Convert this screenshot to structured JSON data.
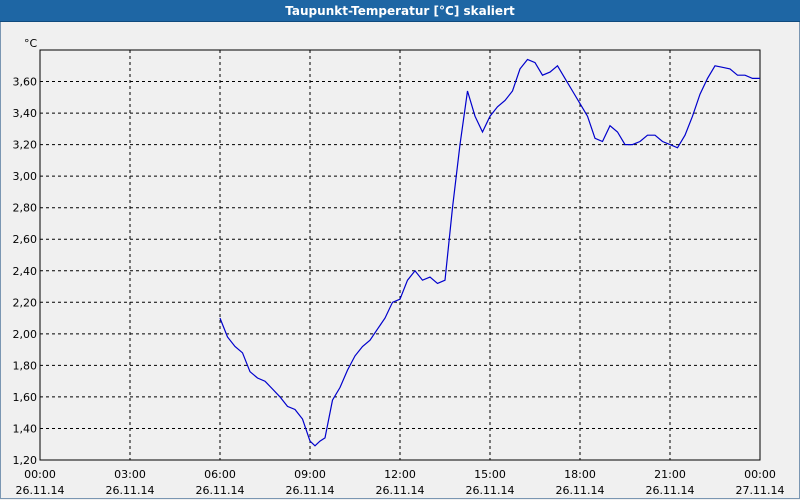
{
  "window": {
    "title": "Taupunkt-Temperatur [°C] skaliert"
  },
  "colors": {
    "series": "#0000cc",
    "grid": "#000000",
    "background": "#f0f0f0",
    "titlebar": "#1e66a4"
  },
  "chart_data": {
    "type": "line",
    "title": "Taupunkt-Temperatur [°C] skaliert",
    "ylabel": "°C",
    "xlabel": "",
    "xlim": [
      "26.11.14 00:00",
      "27.11.14 00:00"
    ],
    "ylim": [
      1.2,
      3.8
    ],
    "grid": true,
    "yticks": [
      "1,20",
      "1,40",
      "1,60",
      "1,80",
      "2,00",
      "2,20",
      "2,40",
      "2,60",
      "2,80",
      "3,00",
      "3,20",
      "3,40",
      "3,60"
    ],
    "xticks": [
      {
        "time": "00:00",
        "date": "26.11.14"
      },
      {
        "time": "03:00",
        "date": "26.11.14"
      },
      {
        "time": "06:00",
        "date": "26.11.14"
      },
      {
        "time": "09:00",
        "date": "26.11.14"
      },
      {
        "time": "12:00",
        "date": "26.11.14"
      },
      {
        "time": "15:00",
        "date": "26.11.14"
      },
      {
        "time": "18:00",
        "date": "26.11.14"
      },
      {
        "time": "21:00",
        "date": "26.11.14"
      },
      {
        "time": "00:00",
        "date": "27.11.14"
      }
    ],
    "series": [
      {
        "x": [
          "06:00",
          "06:15",
          "06:30",
          "06:45",
          "07:00",
          "07:15",
          "07:30",
          "07:45",
          "08:00",
          "08:15",
          "08:30",
          "08:45",
          "09:00",
          "09:10",
          "09:20",
          "09:30",
          "09:45",
          "10:00",
          "10:15",
          "10:30",
          "10:45",
          "11:00",
          "11:15",
          "11:30",
          "11:45",
          "12:00",
          "12:15",
          "12:30",
          "12:45",
          "13:00",
          "13:15",
          "13:30",
          "13:45",
          "14:00",
          "14:15",
          "14:30",
          "14:45",
          "15:00",
          "15:15",
          "15:30",
          "15:45",
          "16:00",
          "16:15",
          "16:30",
          "16:45",
          "17:00",
          "17:15",
          "17:30",
          "17:45",
          "18:00",
          "18:15",
          "18:30",
          "18:45",
          "19:00",
          "19:15",
          "19:30",
          "19:45",
          "20:00",
          "20:15",
          "20:30",
          "20:45",
          "21:00",
          "21:15",
          "21:30",
          "21:45",
          "22:00",
          "22:15",
          "22:30",
          "22:45",
          "23:00",
          "23:15",
          "23:30",
          "23:45",
          "24:00"
        ],
        "values": [
          2.1,
          1.98,
          1.92,
          1.88,
          1.76,
          1.72,
          1.7,
          1.65,
          1.6,
          1.54,
          1.52,
          1.46,
          1.32,
          1.29,
          1.32,
          1.34,
          1.58,
          1.66,
          1.77,
          1.86,
          1.92,
          1.96,
          2.03,
          2.1,
          2.2,
          2.22,
          2.34,
          2.4,
          2.34,
          2.36,
          2.32,
          2.34,
          2.8,
          3.2,
          3.54,
          3.38,
          3.28,
          3.38,
          3.44,
          3.48,
          3.54,
          3.68,
          3.74,
          3.72,
          3.64,
          3.66,
          3.7,
          3.62,
          3.54,
          3.46,
          3.38,
          3.24,
          3.22,
          3.32,
          3.28,
          3.2,
          3.2,
          3.22,
          3.26,
          3.26,
          3.22,
          3.2,
          3.18,
          3.26,
          3.38,
          3.52,
          3.62,
          3.7,
          3.69,
          3.68,
          3.64,
          3.64,
          3.62,
          3.62
        ]
      }
    ]
  }
}
